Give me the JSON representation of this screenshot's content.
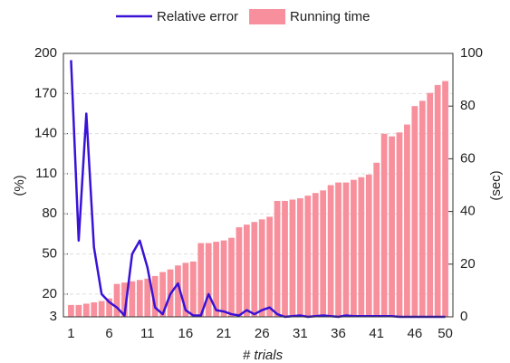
{
  "chart_data": {
    "type": "bar-line",
    "x": [
      1,
      2,
      3,
      4,
      5,
      6,
      7,
      8,
      9,
      10,
      11,
      12,
      13,
      14,
      15,
      16,
      17,
      18,
      19,
      20,
      21,
      22,
      23,
      24,
      25,
      26,
      27,
      28,
      29,
      30,
      31,
      32,
      33,
      34,
      35,
      36,
      37,
      38,
      39,
      40,
      41,
      42,
      43,
      44,
      45,
      46,
      47,
      48,
      49,
      50
    ],
    "xlim": [
      0,
      51
    ],
    "xticks": [
      1,
      6,
      11,
      16,
      21,
      26,
      31,
      36,
      41,
      46,
      50
    ],
    "x_label": "# trials",
    "y_label": "(%)",
    "y2_label": "(sec)",
    "ylim": [
      3,
      200
    ],
    "yticks": [
      3,
      20,
      50,
      80,
      110,
      140,
      170,
      200
    ],
    "y2lim": [
      0,
      100
    ],
    "y2ticks": [
      0,
      20,
      40,
      60,
      80,
      100
    ],
    "grid": true,
    "legend": "top",
    "series": [
      {
        "name": "Relative error",
        "type": "line",
        "color": "#3a12d6",
        "values": [
          195,
          60,
          155,
          55,
          20,
          14,
          10,
          4,
          50,
          60,
          40,
          10,
          5,
          20,
          28,
          8,
          4,
          4,
          20,
          8,
          7,
          5,
          4,
          8,
          5,
          8,
          10,
          5,
          3,
          3.5,
          4,
          3,
          3.5,
          4,
          3.5,
          3,
          4,
          3.5,
          3.5,
          3.5,
          3.5,
          3.5,
          3.5,
          3,
          3,
          3,
          3,
          3,
          3,
          3
        ]
      },
      {
        "name": "Running time",
        "type": "bar",
        "axis": "y2",
        "color": "#f7909c",
        "values": [
          4.5,
          4.5,
          5,
          5.5,
          6,
          7,
          12.5,
          13,
          13.5,
          14,
          14.5,
          15.5,
          17,
          18,
          19.5,
          20.5,
          21,
          28,
          28,
          28.5,
          29,
          30,
          34,
          35,
          36,
          37,
          38,
          44,
          44,
          44.5,
          45,
          46,
          47,
          48,
          50,
          51,
          51,
          52,
          53,
          54,
          58.5,
          69.5,
          68.5,
          70,
          73,
          80,
          82,
          85,
          88,
          89.5
        ]
      }
    ]
  }
}
